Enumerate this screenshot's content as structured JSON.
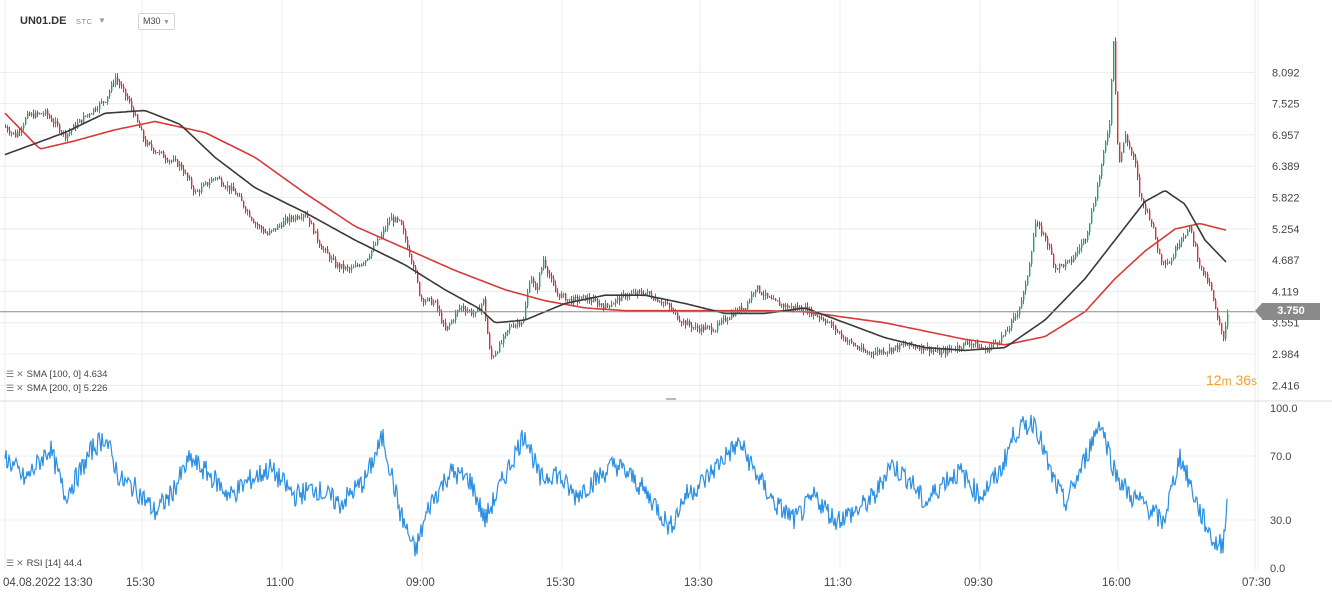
{
  "header": {
    "symbol": "UN01.DE",
    "stc_label": "STC",
    "timeframe": "M30"
  },
  "countdown": {
    "minutes": "12",
    "m": "m",
    "seconds": "36",
    "s": "s"
  },
  "last_price": "3.750",
  "indicators": {
    "sma100": "SMA [100, 0] 4.634",
    "sma200": "SMA [200, 0] 5.226",
    "rsi": "RSI [14] 44.4"
  },
  "colors": {
    "up_candle": "#2a9d6b",
    "down_candle": "#d0343b",
    "sma100": "#3a3a3a",
    "sma200": "#d63a3a",
    "rsi_line": "#2b8fe4",
    "grid": "#ececec",
    "price_line": "#888888",
    "countdown": "#f0a030"
  },
  "chart_data": [
    {
      "type": "candlestick",
      "title": "UN01.DE M30",
      "ylim": [
        2.15,
        8.95
      ],
      "y_ticks": [
        8.092,
        7.525,
        6.957,
        6.389,
        5.822,
        5.254,
        4.687,
        4.119,
        3.551,
        2.984,
        2.416
      ],
      "y_tick_labels": [
        "8.092",
        "7.525",
        "6.957",
        "6.389",
        "5.822",
        "5.254",
        "4.687",
        "4.119",
        "3.551",
        "2.984",
        "2.416"
      ],
      "x_tick_labels": [
        "04.08.2022 13:30",
        "15:30",
        "11:00",
        "09:00",
        "15:30",
        "13:30",
        "11:30",
        "09:30",
        "16:00",
        "07:30"
      ],
      "close_keypoints": [
        [
          0,
          7.1
        ],
        [
          10,
          6.95
        ],
        [
          22,
          7.3
        ],
        [
          40,
          7.35
        ],
        [
          60,
          6.95
        ],
        [
          80,
          7.3
        ],
        [
          100,
          7.6
        ],
        [
          110,
          8.0
        ],
        [
          125,
          7.5
        ],
        [
          140,
          6.8
        ],
        [
          160,
          6.55
        ],
        [
          175,
          6.4
        ],
        [
          190,
          5.9
        ],
        [
          210,
          6.2
        ],
        [
          230,
          5.9
        ],
        [
          250,
          5.35
        ],
        [
          262,
          5.15
        ],
        [
          280,
          5.4
        ],
        [
          300,
          5.55
        ],
        [
          315,
          4.95
        ],
        [
          330,
          4.6
        ],
        [
          345,
          4.5
        ],
        [
          360,
          4.7
        ],
        [
          375,
          5.1
        ],
        [
          385,
          5.45
        ],
        [
          395,
          5.35
        ],
        [
          408,
          4.6
        ],
        [
          415,
          4.0
        ],
        [
          430,
          3.9
        ],
        [
          440,
          3.4
        ],
        [
          455,
          3.85
        ],
        [
          470,
          3.7
        ],
        [
          478,
          3.95
        ],
        [
          485,
          2.9
        ],
        [
          495,
          3.15
        ],
        [
          505,
          3.5
        ],
        [
          518,
          3.6
        ],
        [
          525,
          4.45
        ],
        [
          530,
          4.1
        ],
        [
          538,
          4.7
        ],
        [
          550,
          4.1
        ],
        [
          565,
          3.95
        ],
        [
          580,
          4.0
        ],
        [
          600,
          3.85
        ],
        [
          620,
          4.05
        ],
        [
          640,
          4.1
        ],
        [
          660,
          3.9
        ],
        [
          675,
          3.6
        ],
        [
          690,
          3.45
        ],
        [
          710,
          3.45
        ],
        [
          725,
          3.7
        ],
        [
          740,
          3.85
        ],
        [
          750,
          4.2
        ],
        [
          765,
          3.95
        ],
        [
          780,
          3.85
        ],
        [
          800,
          3.8
        ],
        [
          820,
          3.6
        ],
        [
          840,
          3.25
        ],
        [
          860,
          3.0
        ],
        [
          880,
          3.05
        ],
        [
          900,
          3.15
        ],
        [
          920,
          3.1
        ],
        [
          935,
          3.0
        ],
        [
          950,
          3.1
        ],
        [
          965,
          3.2
        ],
        [
          980,
          3.05
        ],
        [
          1000,
          3.35
        ],
        [
          1012,
          3.75
        ],
        [
          1020,
          4.2
        ],
        [
          1030,
          5.35
        ],
        [
          1040,
          5.1
        ],
        [
          1050,
          4.55
        ],
        [
          1065,
          4.65
        ],
        [
          1080,
          5.1
        ],
        [
          1090,
          5.85
        ],
        [
          1098,
          6.6
        ],
        [
          1104,
          7.2
        ],
        [
          1108,
          8.7
        ],
        [
          1113,
          6.4
        ],
        [
          1120,
          6.95
        ],
        [
          1130,
          6.4
        ],
        [
          1135,
          5.8
        ],
        [
          1145,
          5.45
        ],
        [
          1155,
          4.7
        ],
        [
          1165,
          4.65
        ],
        [
          1175,
          5.1
        ],
        [
          1185,
          5.25
        ],
        [
          1195,
          4.55
        ],
        [
          1205,
          4.2
        ],
        [
          1212,
          3.6
        ],
        [
          1218,
          3.3
        ],
        [
          1222,
          3.75
        ]
      ],
      "sma100_keypoints": [
        [
          0,
          6.6
        ],
        [
          60,
          7.0
        ],
        [
          100,
          7.35
        ],
        [
          140,
          7.4
        ],
        [
          175,
          7.15
        ],
        [
          210,
          6.55
        ],
        [
          250,
          6.0
        ],
        [
          300,
          5.55
        ],
        [
          350,
          5.05
        ],
        [
          400,
          4.6
        ],
        [
          440,
          4.15
        ],
        [
          475,
          3.8
        ],
        [
          490,
          3.55
        ],
        [
          520,
          3.6
        ],
        [
          560,
          3.9
        ],
        [
          600,
          4.05
        ],
        [
          640,
          4.05
        ],
        [
          680,
          3.9
        ],
        [
          720,
          3.72
        ],
        [
          760,
          3.72
        ],
        [
          800,
          3.82
        ],
        [
          840,
          3.55
        ],
        [
          880,
          3.28
        ],
        [
          920,
          3.1
        ],
        [
          960,
          3.05
        ],
        [
          1000,
          3.1
        ],
        [
          1040,
          3.6
        ],
        [
          1080,
          4.35
        ],
        [
          1110,
          5.05
        ],
        [
          1140,
          5.75
        ],
        [
          1160,
          5.95
        ],
        [
          1180,
          5.7
        ],
        [
          1200,
          5.05
        ],
        [
          1222,
          4.634
        ]
      ],
      "sma200_keypoints": [
        [
          0,
          7.35
        ],
        [
          35,
          6.7
        ],
        [
          70,
          6.85
        ],
        [
          110,
          7.05
        ],
        [
          150,
          7.2
        ],
        [
          200,
          7.0
        ],
        [
          250,
          6.55
        ],
        [
          300,
          5.9
        ],
        [
          350,
          5.3
        ],
        [
          400,
          4.9
        ],
        [
          450,
          4.5
        ],
        [
          500,
          4.15
        ],
        [
          540,
          3.95
        ],
        [
          580,
          3.82
        ],
        [
          620,
          3.77
        ],
        [
          700,
          3.77
        ],
        [
          760,
          3.77
        ],
        [
          800,
          3.75
        ],
        [
          840,
          3.65
        ],
        [
          880,
          3.55
        ],
        [
          920,
          3.4
        ],
        [
          960,
          3.25
        ],
        [
          1000,
          3.15
        ],
        [
          1040,
          3.3
        ],
        [
          1080,
          3.75
        ],
        [
          1110,
          4.35
        ],
        [
          1140,
          4.85
        ],
        [
          1170,
          5.25
        ],
        [
          1195,
          5.35
        ],
        [
          1222,
          5.226
        ]
      ]
    },
    {
      "type": "line",
      "title": "RSI [14]",
      "ylim": [
        0,
        100
      ],
      "y_ticks": [
        100,
        70,
        30,
        0
      ],
      "y_tick_labels": [
        "100.0",
        "70.0",
        "30.0",
        "0.0"
      ],
      "rsi_keypoints": [
        [
          0,
          70
        ],
        [
          20,
          55
        ],
        [
          45,
          75
        ],
        [
          60,
          45
        ],
        [
          75,
          60
        ],
        [
          88,
          75
        ],
        [
          100,
          82
        ],
        [
          115,
          55
        ],
        [
          130,
          50
        ],
        [
          150,
          35
        ],
        [
          165,
          45
        ],
        [
          185,
          68
        ],
        [
          205,
          58
        ],
        [
          225,
          45
        ],
        [
          245,
          55
        ],
        [
          265,
          62
        ],
        [
          290,
          45
        ],
        [
          310,
          50
        ],
        [
          335,
          40
        ],
        [
          360,
          55
        ],
        [
          378,
          82
        ],
        [
          395,
          35
        ],
        [
          410,
          10
        ],
        [
          425,
          40
        ],
        [
          445,
          60
        ],
        [
          465,
          55
        ],
        [
          480,
          30
        ],
        [
          498,
          55
        ],
        [
          520,
          85
        ],
        [
          535,
          55
        ],
        [
          550,
          60
        ],
        [
          570,
          45
        ],
        [
          590,
          55
        ],
        [
          610,
          65
        ],
        [
          630,
          55
        ],
        [
          650,
          40
        ],
        [
          665,
          25
        ],
        [
          680,
          45
        ],
        [
          700,
          55
        ],
        [
          720,
          70
        ],
        [
          735,
          78
        ],
        [
          750,
          60
        ],
        [
          770,
          40
        ],
        [
          790,
          30
        ],
        [
          810,
          45
        ],
        [
          830,
          30
        ],
        [
          850,
          35
        ],
        [
          870,
          45
        ],
        [
          885,
          65
        ],
        [
          905,
          55
        ],
        [
          920,
          40
        ],
        [
          940,
          55
        ],
        [
          955,
          60
        ],
        [
          975,
          45
        ],
        [
          995,
          60
        ],
        [
          1010,
          85
        ],
        [
          1030,
          92
        ],
        [
          1045,
          60
        ],
        [
          1060,
          40
        ],
        [
          1075,
          60
        ],
        [
          1095,
          92
        ],
        [
          1110,
          60
        ],
        [
          1125,
          45
        ],
        [
          1140,
          40
        ],
        [
          1158,
          28
        ],
        [
          1175,
          70
        ],
        [
          1195,
          35
        ],
        [
          1210,
          15
        ],
        [
          1218,
          15
        ],
        [
          1222,
          44.4
        ]
      ]
    }
  ]
}
